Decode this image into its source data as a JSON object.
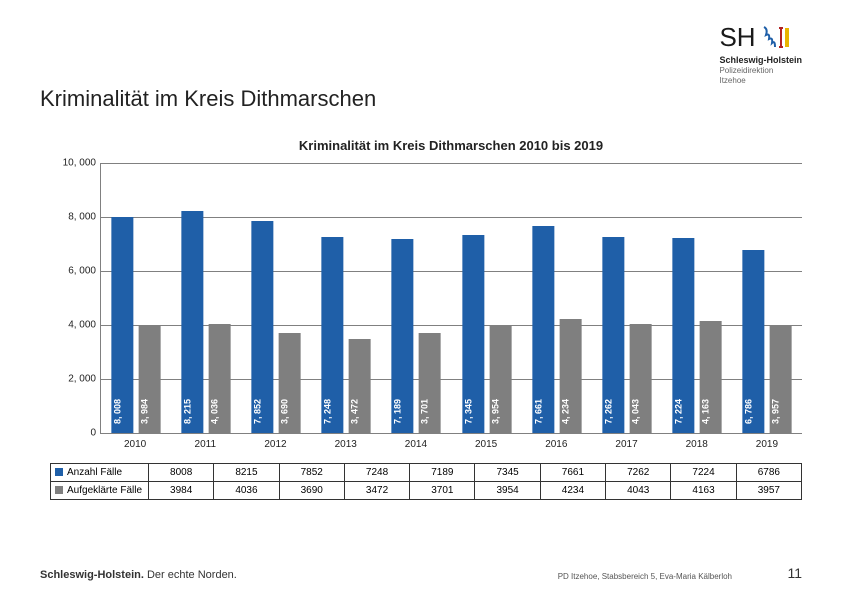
{
  "logo": {
    "sh": "SH",
    "line1": "Schleswig-Holstein",
    "line2": "Polizeidirektion",
    "line3": "Itzehoe"
  },
  "main_title": "Kriminalität im Kreis Dithmarschen",
  "chart": {
    "title": "Kriminalität im Kreis Dithmarschen 2010 bis 2019",
    "type": "bar",
    "ylim": [
      0,
      10000
    ],
    "yticks": [
      0,
      2000,
      4000,
      6000,
      8000,
      10000
    ],
    "ytick_labels": [
      "0",
      "2, 000",
      "4, 000",
      "6, 000",
      "8, 000",
      "10, 000"
    ],
    "categories": [
      "2010",
      "2011",
      "2012",
      "2013",
      "2014",
      "2015",
      "2016",
      "2017",
      "2018",
      "2019"
    ],
    "series": [
      {
        "name": "Anzahl Fälle",
        "color": "#1f5fa8",
        "values": [
          8008,
          8215,
          7852,
          7248,
          7189,
          7345,
          7661,
          7262,
          7224,
          6786
        ],
        "labels": [
          "8, 008",
          "8, 215",
          "7, 852",
          "7, 248",
          "7, 189",
          "7, 345",
          "7, 661",
          "7, 262",
          "7, 224",
          "6, 786"
        ]
      },
      {
        "name": "Aufgeklärte Fälle",
        "color": "#7f7f7f",
        "values": [
          3984,
          4036,
          3690,
          3472,
          3701,
          3954,
          4234,
          4043,
          4163,
          3957
        ],
        "labels": [
          "3, 984",
          "4, 036",
          "3, 690",
          "3, 472",
          "3, 701",
          "3, 954",
          "4, 234",
          "4, 043",
          "4, 163",
          "3, 957"
        ]
      }
    ],
    "gridline_color": "#808080",
    "background_color": "#ffffff"
  },
  "table": {
    "row_headers": [
      "Anzahl Fälle",
      "Aufgeklärte Fälle"
    ],
    "columns": [
      "2010",
      "2011",
      "2012",
      "2013",
      "2014",
      "2015",
      "2016",
      "2017",
      "2018",
      "2019"
    ],
    "rows": [
      [
        "8008",
        "8215",
        "7852",
        "7248",
        "7189",
        "7345",
        "7661",
        "7262",
        "7224",
        "6786"
      ],
      [
        "3984",
        "4036",
        "3690",
        "3472",
        "3701",
        "3954",
        "4234",
        "4043",
        "4163",
        "3957"
      ]
    ],
    "legend_colors": [
      "#1f5fa8",
      "#7f7f7f"
    ]
  },
  "footer": {
    "brand_bold": "Schleswig-Holstein.",
    "brand_rest": " Der echte Norden.",
    "source": "PD Itzehoe, Stabsbereich 5, Eva-Maria Kälberloh",
    "page": "11"
  }
}
